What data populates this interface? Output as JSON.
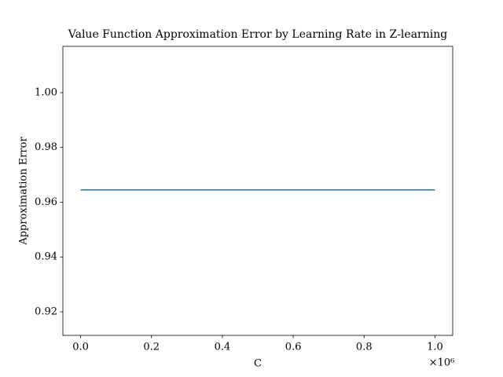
{
  "chart_data": {
    "type": "line",
    "title": "Value Function Approximation Error by Learning Rate in Z-learning",
    "x_label": "C",
    "y_label": "Approximation Error",
    "x_offset_label": "×10⁶",
    "x": [
      0,
      1000000
    ],
    "series": [
      {
        "color": "#1f77b4",
        "values": [
          0.9645,
          0.9645
        ]
      }
    ],
    "xlim": [
      -50000,
      1050000
    ],
    "ylim": [
      0.9114,
      1.0169
    ],
    "xticks": [
      {
        "value": 0,
        "label": "0.0"
      },
      {
        "value": 200000,
        "label": "0.2"
      },
      {
        "value": 400000,
        "label": "0.4"
      },
      {
        "value": 600000,
        "label": "0.6"
      },
      {
        "value": 800000,
        "label": "0.8"
      },
      {
        "value": 1000000,
        "label": "1.0"
      }
    ],
    "yticks": [
      0.92,
      0.94,
      0.96,
      0.98,
      {
        "value": 1.0,
        "label": "1.00"
      }
    ],
    "grid": false
  }
}
